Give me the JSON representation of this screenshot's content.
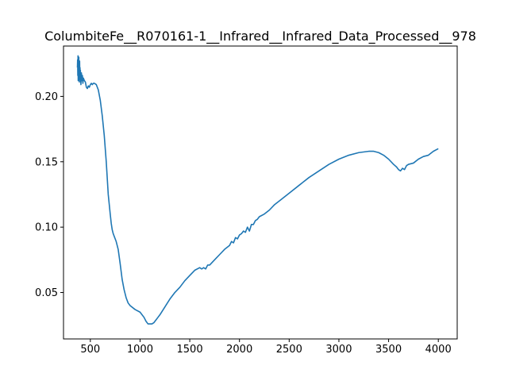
{
  "chart_data": {
    "type": "line",
    "title": "ColumbiteFe__R070161-1__Infrared__Infrared_Data_Processed__978",
    "xlabel": "",
    "ylabel": "",
    "xlim": [
      230,
      4190
    ],
    "ylim": [
      0.0145,
      0.2385
    ],
    "xticks": [
      500,
      1000,
      1500,
      2000,
      2500,
      3000,
      3500,
      4000
    ],
    "xtick_labels": [
      "500",
      "1000",
      "1500",
      "2000",
      "2500",
      "3000",
      "3500",
      "4000"
    ],
    "yticks": [
      0.05,
      0.1,
      0.15,
      0.2
    ],
    "ytick_labels": [
      "0.05",
      "0.10",
      "0.15",
      "0.20"
    ],
    "grid": false,
    "colors": {
      "series": "#1f77b4"
    },
    "series": [
      {
        "x": [
          370,
          372,
          374,
          376,
          378,
          380,
          382,
          384,
          386,
          388,
          390,
          392,
          394,
          396,
          398,
          400,
          405,
          410,
          415,
          420,
          425,
          430,
          440,
          450,
          460,
          470,
          480,
          490,
          500,
          510,
          520,
          530,
          540,
          560,
          580,
          600,
          620,
          640,
          660,
          680,
          700,
          710,
          720,
          730,
          740,
          760,
          780,
          800,
          820,
          840,
          860,
          880,
          900,
          950,
          1000,
          1040,
          1060,
          1080,
          1100,
          1120,
          1140,
          1160,
          1180,
          1200,
          1250,
          1300,
          1350,
          1400,
          1450,
          1500,
          1550,
          1600,
          1620,
          1640,
          1660,
          1680,
          1700,
          1750,
          1800,
          1850,
          1900,
          1920,
          1940,
          1960,
          1980,
          2000,
          2020,
          2040,
          2060,
          2080,
          2100,
          2120,
          2140,
          2160,
          2180,
          2200,
          2250,
          2300,
          2350,
          2400,
          2500,
          2600,
          2700,
          2800,
          2900,
          3000,
          3100,
          3200,
          3300,
          3350,
          3400,
          3450,
          3500,
          3550,
          3580,
          3600,
          3620,
          3640,
          3660,
          3680,
          3700,
          3750,
          3800,
          3850,
          3900,
          3950,
          4000
        ],
        "y": [
          0.222,
          0.228,
          0.216,
          0.231,
          0.212,
          0.226,
          0.218,
          0.23,
          0.214,
          0.224,
          0.211,
          0.227,
          0.216,
          0.222,
          0.213,
          0.22,
          0.209,
          0.218,
          0.212,
          0.216,
          0.21,
          0.214,
          0.212,
          0.211,
          0.207,
          0.206,
          0.208,
          0.207,
          0.209,
          0.21,
          0.209,
          0.21,
          0.21,
          0.209,
          0.205,
          0.197,
          0.185,
          0.17,
          0.15,
          0.125,
          0.11,
          0.103,
          0.098,
          0.095,
          0.093,
          0.089,
          0.083,
          0.072,
          0.06,
          0.052,
          0.046,
          0.042,
          0.04,
          0.037,
          0.035,
          0.031,
          0.028,
          0.026,
          0.026,
          0.026,
          0.027,
          0.029,
          0.031,
          0.033,
          0.039,
          0.045,
          0.05,
          0.054,
          0.059,
          0.063,
          0.067,
          0.069,
          0.068,
          0.069,
          0.068,
          0.071,
          0.071,
          0.075,
          0.079,
          0.083,
          0.086,
          0.089,
          0.088,
          0.092,
          0.091,
          0.094,
          0.095,
          0.097,
          0.096,
          0.1,
          0.097,
          0.102,
          0.102,
          0.105,
          0.106,
          0.108,
          0.11,
          0.113,
          0.117,
          0.12,
          0.126,
          0.132,
          0.138,
          0.143,
          0.148,
          0.152,
          0.155,
          0.157,
          0.158,
          0.158,
          0.157,
          0.155,
          0.152,
          0.148,
          0.146,
          0.144,
          0.143,
          0.145,
          0.144,
          0.147,
          0.148,
          0.149,
          0.152,
          0.154,
          0.155,
          0.158,
          0.16
        ]
      }
    ]
  }
}
